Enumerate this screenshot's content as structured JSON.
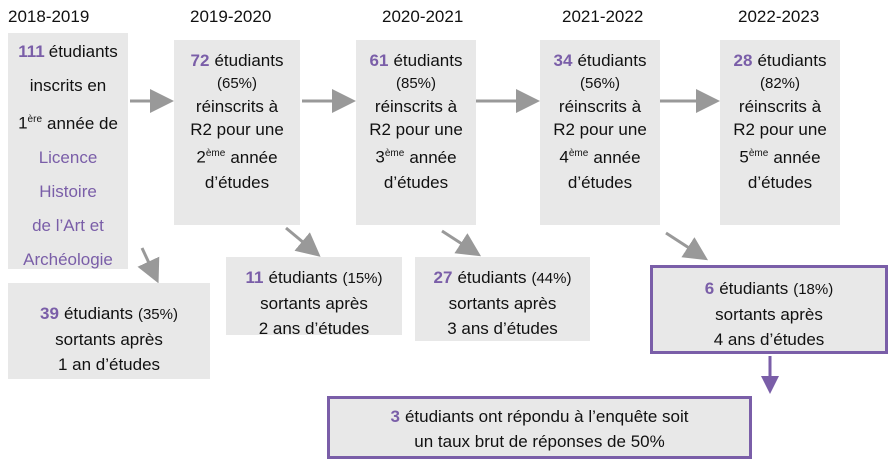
{
  "years": [
    "2018-2019",
    "2019-2020",
    "2020-2021",
    "2021-2022",
    "2022-2023"
  ],
  "cohort": {
    "number": "111",
    "lines": [
      "étudiants",
      "inscrits en"
    ],
    "ordinal": "1",
    "ordinal_sup": "ère",
    "ordinal_rest": "année de",
    "program": [
      "Licence",
      "Histoire",
      "de l’Art et",
      "Archéologie"
    ]
  },
  "stages": [
    {
      "number": "72",
      "text": "étudiants",
      "pct": "(65%)",
      "line1": "réinscrits à",
      "line2": "R2 pour une",
      "ordinal": "2",
      "sup": "ème",
      "rest": "année",
      "last": "d’études"
    },
    {
      "number": "61",
      "text": "étudiants",
      "pct": "(85%)",
      "line1": "réinscrits à",
      "line2": "R2 pour une",
      "ordinal": "3",
      "sup": "ème",
      "rest": "année",
      "last": "d’études"
    },
    {
      "number": "34",
      "text": "étudiants",
      "pct": "(56%)",
      "line1": "réinscrits à",
      "line2": "R2 pour une",
      "ordinal": "4",
      "sup": "ème",
      "rest": "année",
      "last": "d’études"
    },
    {
      "number": "28",
      "text": "étudiants",
      "pct": "(82%)",
      "line1": "réinscrits à",
      "line2": "R2 pour une",
      "ordinal": "5",
      "sup": "ème",
      "rest": "année",
      "last": "d’études"
    }
  ],
  "exits": [
    {
      "number": "39",
      "text": "étudiants",
      "pct": "(35%)",
      "line1": "sortants après",
      "line2": "1 an d’études"
    },
    {
      "number": "11",
      "text": "étudiants",
      "pct": "(15%)",
      "line1": "sortants après",
      "line2": "2 ans d’études"
    },
    {
      "number": "27",
      "text": "étudiants",
      "pct": "(44%)",
      "line1": "sortants après",
      "line2": "3 ans d’études"
    },
    {
      "number": "6",
      "text": "étudiants",
      "pct": "(18%)",
      "line1": "sortants après",
      "line2": "4 ans d’études"
    }
  ],
  "survey": {
    "number": "3",
    "line1": "étudiants ont répondu à l’enquête soit",
    "line2": "un taux brut de réponses de 50%"
  }
}
